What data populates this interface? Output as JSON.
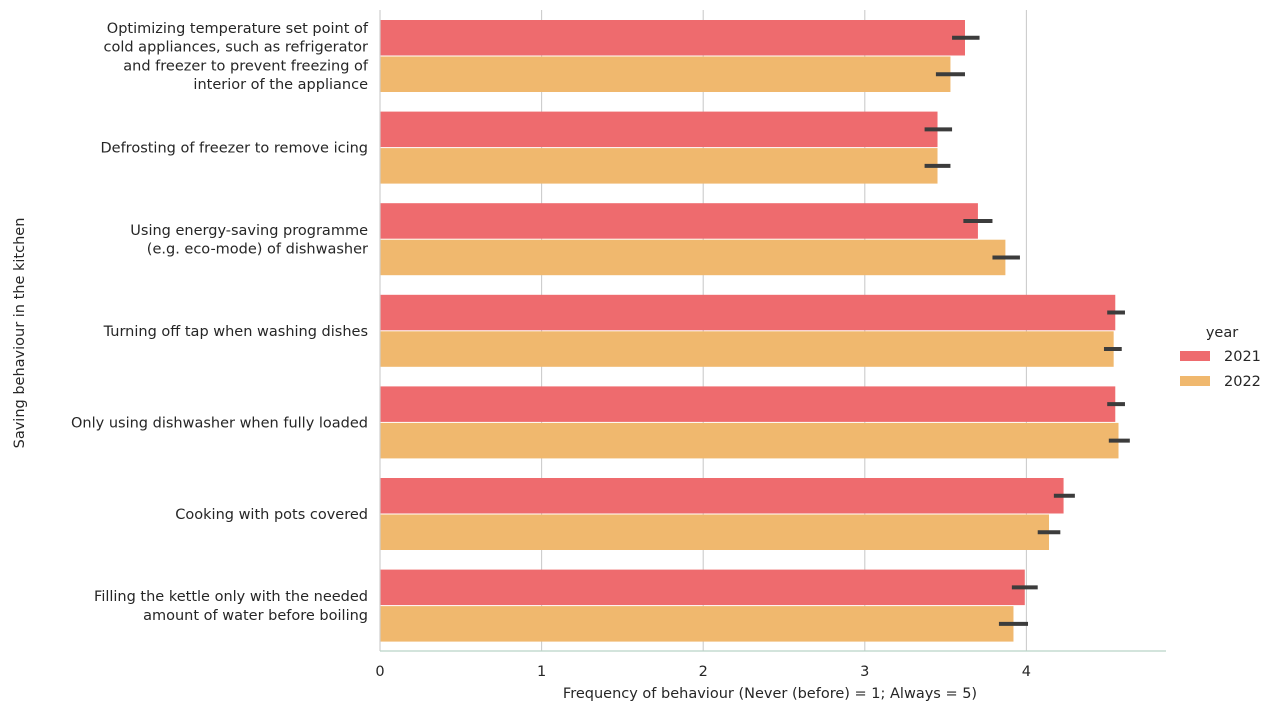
{
  "chart_data": {
    "type": "bar",
    "orientation": "horizontal",
    "categories": [
      "Optimizing temperature set point of\ncold appliances, such as refrigerator\nand freezer to prevent freezing of\ninterior of the appliance",
      "Defrosting of freezer to remove icing",
      "Using energy-saving programme\n(e.g. eco-mode) of dishwasher",
      "Turning off tap when washing dishes",
      "Only using dishwasher when fully loaded",
      "Cooking with pots covered",
      "Filling the kettle only with the needed\namount of water before boiling"
    ],
    "series": [
      {
        "name": "2021",
        "color": "#ee6b6e",
        "values": [
          3.62,
          3.45,
          3.7,
          4.55,
          4.55,
          4.23,
          3.99
        ],
        "ci": [
          [
            3.54,
            3.71
          ],
          [
            3.37,
            3.54
          ],
          [
            3.61,
            3.79
          ],
          [
            4.5,
            4.61
          ],
          [
            4.5,
            4.61
          ],
          [
            4.17,
            4.3
          ],
          [
            3.91,
            4.07
          ]
        ]
      },
      {
        "name": "2022",
        "color": "#f0b86e",
        "values": [
          3.53,
          3.45,
          3.87,
          4.54,
          4.57,
          4.14,
          3.92
        ],
        "ci": [
          [
            3.44,
            3.62
          ],
          [
            3.37,
            3.53
          ],
          [
            3.79,
            3.96
          ],
          [
            4.48,
            4.59
          ],
          [
            4.51,
            4.64
          ],
          [
            4.07,
            4.21
          ],
          [
            3.83,
            4.01
          ]
        ]
      }
    ],
    "xlabel": "Frequency of behaviour (Never (before) = 1; Always = 5)",
    "ylabel": "Saving behaviour in the kitchen",
    "xticks": [
      0,
      1,
      2,
      3,
      4
    ],
    "xlim": [
      0,
      4.85
    ],
    "grid": "vertical",
    "errorbar_color": "#3c3c3c",
    "legend": {
      "title": "year",
      "placement": "right",
      "entries": [
        "2021",
        "2022"
      ]
    }
  }
}
